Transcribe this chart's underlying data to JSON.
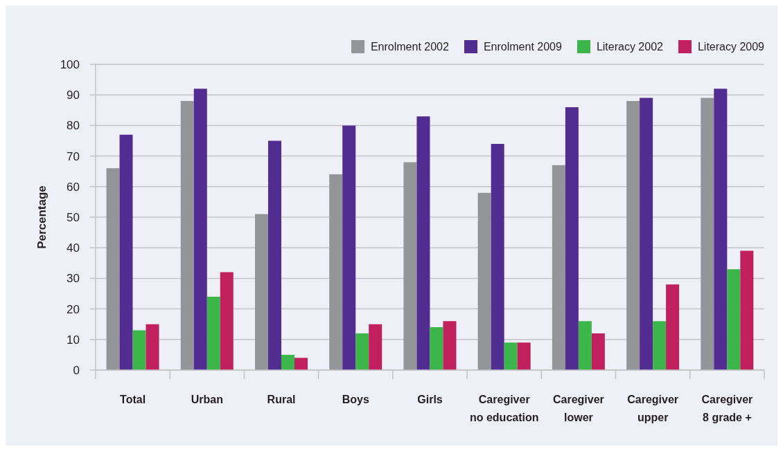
{
  "chart_data": {
    "type": "bar",
    "ylabel": "Percentage",
    "categories": [
      "Total",
      "Urban",
      "Rural",
      "Boys",
      "Girls",
      "Caregiver no education",
      "Caregiver lower",
      "Caregiver upper",
      "Caregiver 8 grade +"
    ],
    "series": [
      {
        "name": "Enrolment 2002",
        "color": "#939598",
        "values": [
          66,
          88,
          51,
          64,
          68,
          58,
          67,
          88,
          89
        ]
      },
      {
        "name": "Enrolment 2009",
        "color": "#522d91",
        "values": [
          77,
          92,
          75,
          80,
          83,
          74,
          86,
          89,
          92
        ]
      },
      {
        "name": "Literacy 2002",
        "color": "#3cb54a",
        "values": [
          13,
          24,
          5,
          12,
          14,
          9,
          16,
          16,
          33
        ]
      },
      {
        "name": "Literacy 2009",
        "color": "#c0215e",
        "values": [
          15,
          32,
          4,
          15,
          16,
          9,
          12,
          28,
          39
        ]
      }
    ],
    "ylim": [
      0,
      100
    ],
    "yticks": [
      0,
      10,
      20,
      30,
      40,
      50,
      60,
      70,
      80,
      90,
      100
    ],
    "grid": "y",
    "legend": "top right"
  }
}
